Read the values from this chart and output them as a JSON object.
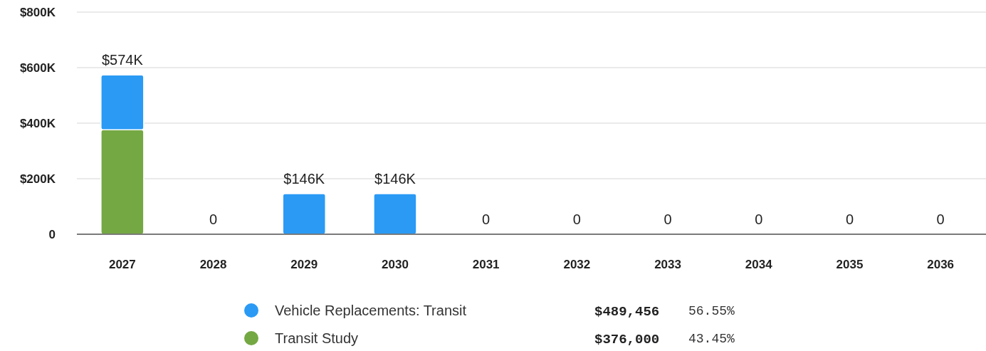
{
  "chart_data": {
    "type": "bar",
    "stacked": true,
    "categories": [
      "2027",
      "2028",
      "2029",
      "2030",
      "2031",
      "2032",
      "2033",
      "2034",
      "2035",
      "2036"
    ],
    "series": [
      {
        "name": "Transit Study",
        "color": "#74a843",
        "values": [
          376000,
          0,
          0,
          0,
          0,
          0,
          0,
          0,
          0,
          0
        ]
      },
      {
        "name": "Vehicle Replacements: Transit",
        "color": "#2a9af5",
        "values": [
          197456,
          0,
          146000,
          146000,
          0,
          0,
          0,
          0,
          0,
          0
        ]
      }
    ],
    "totals": [
      "$574K",
      "0",
      "$146K",
      "$146K",
      "0",
      "0",
      "0",
      "0",
      "0",
      "0"
    ],
    "ylim": [
      0,
      800000
    ],
    "yticks": [
      {
        "value": 0,
        "label": "0"
      },
      {
        "value": 200000,
        "label": "$200K"
      },
      {
        "value": 400000,
        "label": "$400K"
      },
      {
        "value": 600000,
        "label": "$600K"
      },
      {
        "value": 800000,
        "label": "$800K"
      }
    ],
    "grid": "y",
    "legend": "bottom",
    "annotations": [
      "$376,000",
      "43.45%",
      "$489,456",
      "56.55%"
    ]
  }
}
